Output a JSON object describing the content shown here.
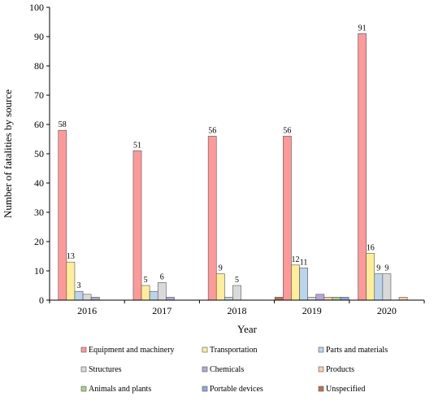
{
  "chart_data": {
    "type": "bar",
    "title": "",
    "xlabel": "Year",
    "ylabel": "Number of fatalities by source",
    "categories": [
      "2016",
      "2017",
      "2018",
      "2019",
      "2020"
    ],
    "ylim": [
      0,
      100
    ],
    "yticks": [
      0,
      10,
      20,
      30,
      40,
      50,
      60,
      70,
      80,
      90,
      100
    ],
    "grid": false,
    "legend_position": "bottom",
    "series": [
      {
        "name": "Unspecified",
        "color": "#C07050",
        "values": [
          0,
          0,
          0,
          1,
          0
        ],
        "labels": [
          "",
          "",
          "",
          "",
          ""
        ]
      },
      {
        "name": "Equipment and machinery",
        "color": "#FF9999",
        "values": [
          58,
          51,
          56,
          56,
          91
        ],
        "labels": [
          "58",
          "51",
          "56",
          "56",
          "91"
        ]
      },
      {
        "name": "Transportation",
        "color": "#FFEE99",
        "values": [
          13,
          5,
          9,
          12,
          16
        ],
        "labels": [
          "13",
          "5",
          "9",
          "12",
          "16"
        ]
      },
      {
        "name": "Parts and materials",
        "color": "#BCD3EC",
        "values": [
          3,
          3,
          1,
          11,
          9
        ],
        "labels": [
          "3",
          "",
          "",
          "11",
          "9"
        ]
      },
      {
        "name": "Structures",
        "color": "#D9D9D9",
        "values": [
          2,
          6,
          5,
          1,
          9
        ],
        "labels": [
          "",
          "6",
          "5",
          "",
          "9"
        ]
      },
      {
        "name": "Chemicals",
        "color": "#B4A7D6",
        "values": [
          1,
          1,
          0,
          2,
          0
        ],
        "labels": [
          "",
          "",
          "",
          "",
          ""
        ]
      },
      {
        "name": "Products",
        "color": "#F8CBAD",
        "values": [
          0,
          0,
          0,
          1,
          1
        ],
        "labels": [
          "",
          "",
          "",
          "",
          ""
        ]
      },
      {
        "name": "Animals and plants",
        "color": "#A9D18E",
        "values": [
          0,
          0,
          0,
          1,
          0
        ],
        "labels": [
          "",
          "",
          "",
          "",
          ""
        ]
      },
      {
        "name": "Portable devices",
        "color": "#8EA9DB",
        "values": [
          0,
          0,
          0,
          1,
          0
        ],
        "labels": [
          "",
          "",
          "",
          "",
          ""
        ]
      }
    ],
    "legend_order": [
      "Equipment and machinery",
      "Transportation",
      "Parts and materials",
      "Structures",
      "Chemicals",
      "Products",
      "Animals and plants",
      "Portable devices",
      "Unspecified"
    ]
  }
}
